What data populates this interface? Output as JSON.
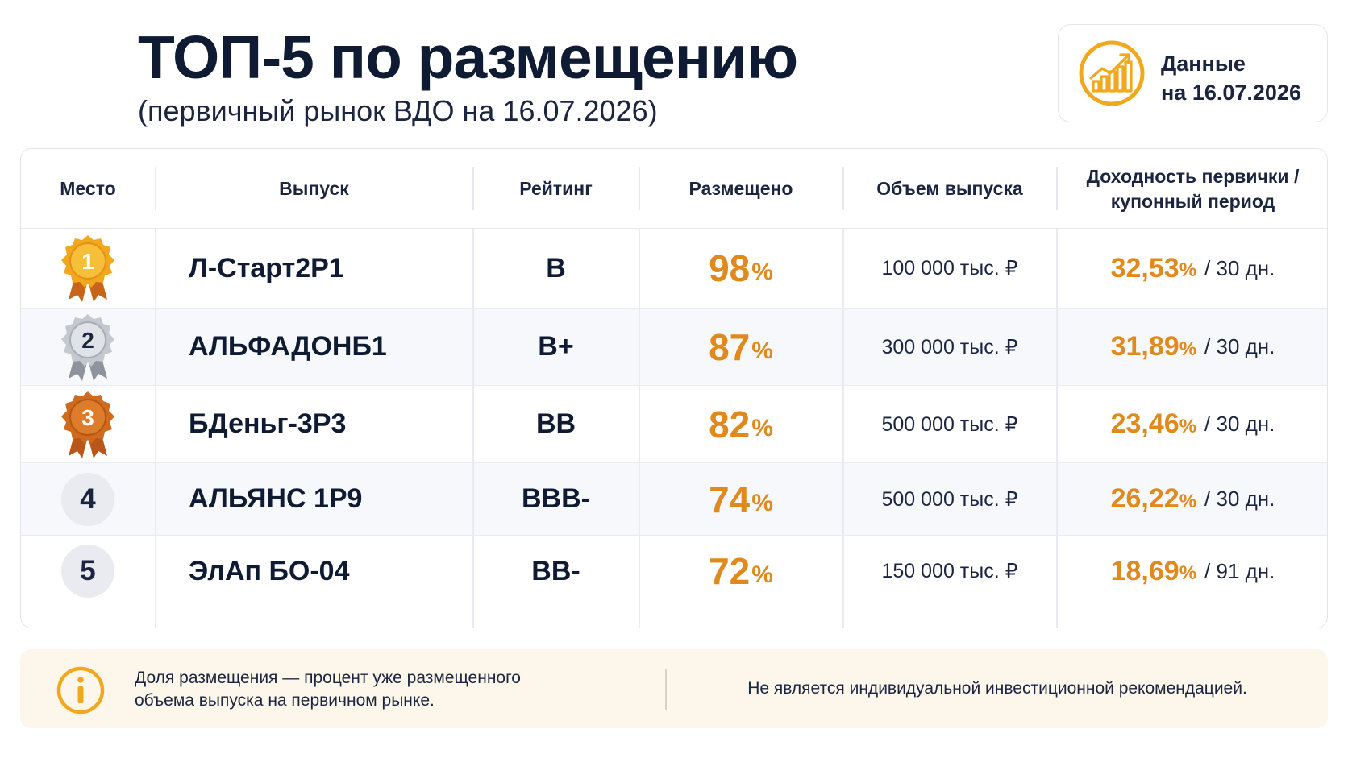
{
  "header": {
    "title": "ТОП-5 по размещению",
    "subtitle": "(первичный рынок ВДО на 16.07.2026)"
  },
  "date_card": {
    "icon": "chart-growth-icon",
    "line1": "Данные",
    "line2": "на 16.07.2026"
  },
  "colors": {
    "accent": "#e08a1e",
    "text": "#0f1b33",
    "gold": "#f2a81d",
    "silver": "#b9bec7",
    "bronze": "#c8641a",
    "footer_bg": "#fdf6ea"
  },
  "table": {
    "columns": {
      "place": "Место",
      "issue": "Выпуск",
      "rating": "Рейтинг",
      "placed": "Размещено",
      "volume": "Объем выпуска",
      "yield_line1": "Доходность первички /",
      "yield_line2": "купонный период"
    },
    "rows": [
      {
        "place": "1",
        "medal": "gold-medal-icon",
        "issue": "Л-Старт2Р1",
        "rating": "B",
        "placed": "98",
        "placed_unit": "%",
        "volume": "100 000 тыс. ₽",
        "yield": "32,53",
        "yield_unit": "%",
        "period": "/ 30 дн."
      },
      {
        "place": "2",
        "medal": "silver-medal-icon",
        "issue": "АЛЬФАДОНБ1",
        "rating": "B+",
        "placed": "87",
        "placed_unit": "%",
        "volume": "300 000 тыс. ₽",
        "yield": "31,89",
        "yield_unit": "%",
        "period": "/ 30 дн."
      },
      {
        "place": "3",
        "medal": "bronze-medal-icon",
        "issue": "БДеньг-3Р3",
        "rating": "BB",
        "placed": "82",
        "placed_unit": "%",
        "volume": "500 000 тыс. ₽",
        "yield": "23,46",
        "yield_unit": "%",
        "period": "/ 30 дн."
      },
      {
        "place": "4",
        "medal": "",
        "issue": "АЛЬЯНС 1Р9",
        "rating": "BBB-",
        "placed": "74",
        "placed_unit": "%",
        "volume": "500 000 тыс. ₽",
        "yield": "26,22",
        "yield_unit": "%",
        "period": "/ 30 дн."
      },
      {
        "place": "5",
        "medal": "",
        "issue": "ЭлАп БО-04",
        "rating": "BB-",
        "placed": "72",
        "placed_unit": "%",
        "volume": "150 000 тыс. ₽",
        "yield": "18,69",
        "yield_unit": "%",
        "period": "/ 91 дн."
      }
    ]
  },
  "footer": {
    "icon": "info-icon",
    "note_line1": "Доля размещения — процент уже размещенного",
    "note_line2": "объема выпуска на первичном рынке.",
    "disclaimer": "Не является индивидуальной инвестиционной рекомендацией."
  }
}
